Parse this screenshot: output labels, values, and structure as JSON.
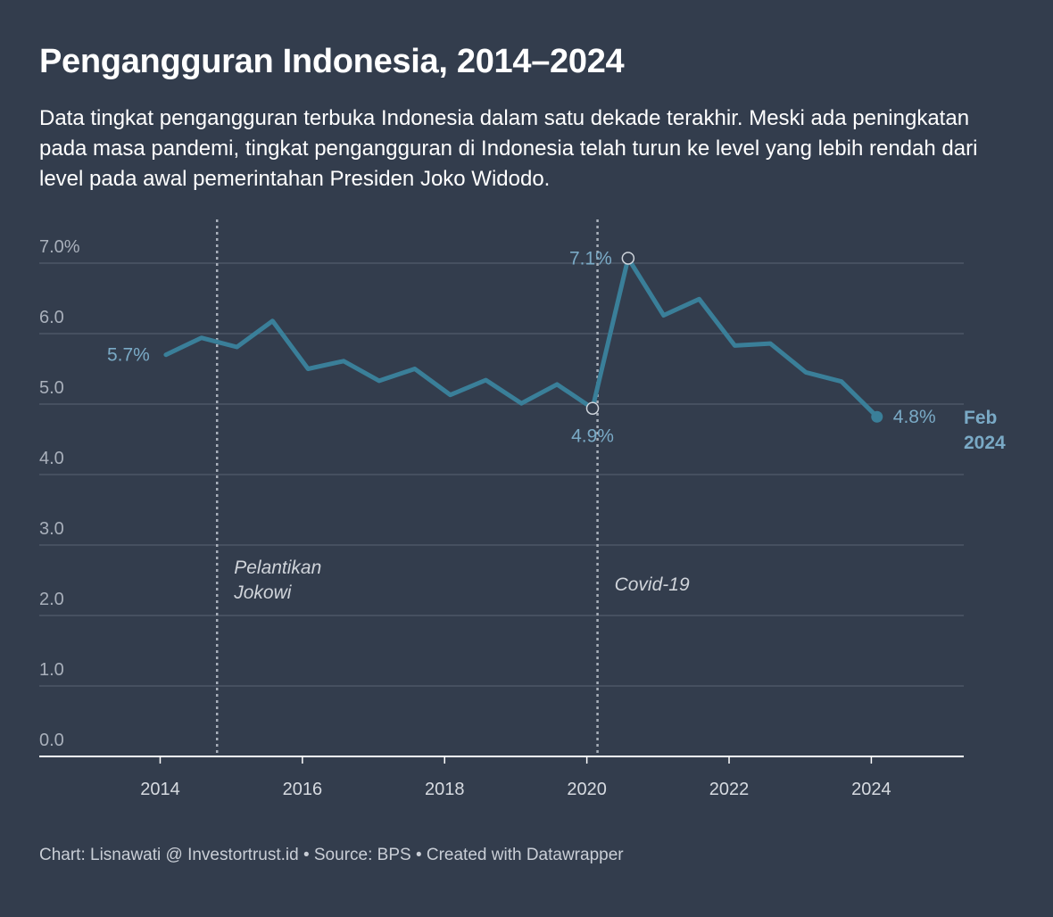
{
  "header": {
    "title": "Pengangguran Indonesia, 2014–2024",
    "subtitle": "Data tingkat pengangguran terbuka Indonesia dalam satu dekade terakhir. Meski ada peningkatan pada masa pandemi, tingkat pengangguran di Indonesia telah turun ke level yang lebih rendah dari level pada awal pemerintahan Presiden Joko Widodo."
  },
  "footer": {
    "credit": "Chart: Lisnawati @ Investortrust.id • Source: BPS • Created with Datawrapper"
  },
  "colors": {
    "background": "#333d4d",
    "line": "#3a7f99",
    "label": "#7aaac6",
    "grid": "#4c5666"
  },
  "chart_data": {
    "type": "line",
    "title": "Pengangguran Indonesia, 2014–2024",
    "xlabel": "",
    "ylabel": "",
    "xlim": [
      2012.3,
      2025.3
    ],
    "ylim": [
      0,
      7
    ],
    "y_ticks": [
      "0.0",
      "1.0",
      "2.0",
      "3.0",
      "4.0",
      "5.0",
      "6.0",
      "7.0%"
    ],
    "x_ticks": [
      "2014",
      "2016",
      "2018",
      "2020",
      "2022",
      "2024"
    ],
    "grid": true,
    "series": [
      {
        "x": [
          2014.08,
          2014.58,
          2015.08,
          2015.58,
          2016.08,
          2016.58,
          2017.08,
          2017.58,
          2018.08,
          2018.58,
          2019.08,
          2019.58,
          2020.08,
          2020.58,
          2021.08,
          2021.58,
          2022.08,
          2022.58,
          2023.08,
          2023.58,
          2024.08
        ],
        "y": [
          5.7,
          5.94,
          5.81,
          6.18,
          5.5,
          5.61,
          5.33,
          5.5,
          5.13,
          5.34,
          5.01,
          5.28,
          4.94,
          7.07,
          6.26,
          6.49,
          5.83,
          5.86,
          5.45,
          5.32,
          4.82
        ]
      }
    ],
    "value_labels": [
      {
        "text": "5.7%",
        "x": 2014.08,
        "y": 5.7,
        "pos": "left"
      },
      {
        "text": "7.1%",
        "x": 2020.58,
        "y": 7.07,
        "pos": "left",
        "ring": true
      },
      {
        "text": "4.9%",
        "x": 2020.08,
        "y": 4.94,
        "pos": "below",
        "ring": true
      },
      {
        "text": "4.8%",
        "x": 2024.08,
        "y": 4.82,
        "pos": "right",
        "dot": true
      }
    ],
    "end_label": [
      "Feb",
      "2024"
    ],
    "annotations": [
      {
        "x": 2014.8,
        "lines": [
          "Pelantikan",
          "Jokowi"
        ]
      },
      {
        "x": 2020.15,
        "lines": [
          "Covid-19"
        ]
      }
    ]
  }
}
